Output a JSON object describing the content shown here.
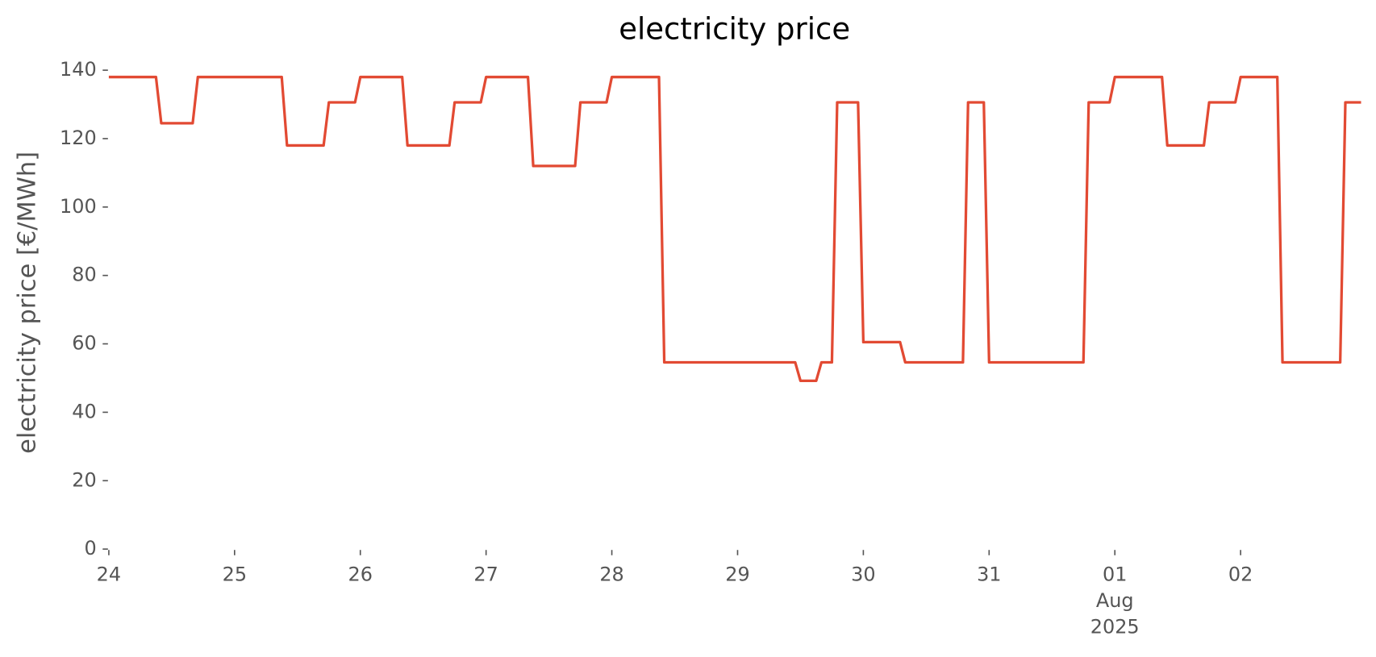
{
  "chart_data": {
    "type": "line",
    "title": "electricity price",
    "ylabel": "electricity price [€/MWh]",
    "x": [
      0,
      0.375,
      0.417,
      0.667,
      0.708,
      1.375,
      1.417,
      1.708,
      1.75,
      1.958,
      2,
      2.333,
      2.375,
      2.708,
      2.75,
      2.958,
      3,
      3.333,
      3.375,
      3.708,
      3.75,
      3.958,
      4,
      4.375,
      4.417,
      5.458,
      5.5,
      5.625,
      5.667,
      5.75,
      5.792,
      5.958,
      6,
      6.292,
      6.333,
      6.792,
      6.833,
      6.958,
      7,
      7.75,
      7.792,
      7.958,
      8,
      8.375,
      8.417,
      8.708,
      8.75,
      8.958,
      9,
      9.292,
      9.333,
      9.792,
      9.833,
      9.958
    ],
    "values": [
      138,
      138,
      124.5,
      124.5,
      138,
      138,
      118,
      118,
      130.6,
      130.6,
      138,
      138,
      118,
      118,
      130.6,
      130.6,
      138,
      138,
      112,
      112,
      130.6,
      130.6,
      138,
      138,
      54.6,
      54.6,
      49.2,
      49.2,
      54.6,
      54.6,
      130.6,
      130.6,
      60.5,
      60.5,
      54.6,
      54.6,
      130.6,
      130.6,
      54.6,
      54.6,
      130.6,
      130.6,
      138,
      138,
      118,
      118,
      130.6,
      130.6,
      138,
      138,
      54.6,
      54.6,
      130.6,
      130.6
    ],
    "color": "#e24a33",
    "xlim": [
      0,
      9.958
    ],
    "xticks": [
      {
        "value": 0,
        "label": "24"
      },
      {
        "value": 1,
        "label": "25"
      },
      {
        "value": 2,
        "label": "26"
      },
      {
        "value": 3,
        "label": "27"
      },
      {
        "value": 4,
        "label": "28"
      },
      {
        "value": 5,
        "label": "29"
      },
      {
        "value": 6,
        "label": "30"
      },
      {
        "value": 7,
        "label": "31"
      },
      {
        "value": 8,
        "label": "01\nAug\n2025"
      },
      {
        "value": 9,
        "label": "02"
      }
    ],
    "ylim": [
      0,
      140
    ],
    "yticks": [
      0,
      20,
      40,
      60,
      80,
      100,
      120,
      140
    ],
    "grid": false
  }
}
